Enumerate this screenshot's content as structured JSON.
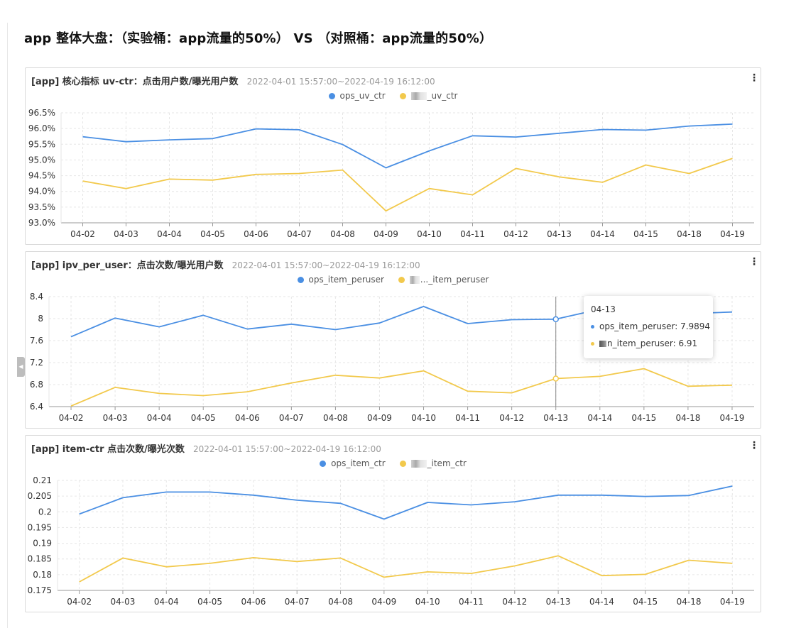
{
  "page": {
    "title": "app 整体大盘：（实验桶：app流量的50%） VS （对照桶：app流量的50%）"
  },
  "colors": {
    "blue": "#4a8fe3",
    "yellow": "#f2c94c",
    "grid": "#e6e6e6",
    "axis": "#999999"
  },
  "panels": [
    {
      "title": "[app] 核心指标 uv-ctr：点击用户数/曝光用户数",
      "range": "2022-04-01 15:57:00~2022-04-19 16:12:00",
      "legend": [
        {
          "label": "ops_uv_ctr",
          "color": "#4a8fe3",
          "masked": false
        },
        {
          "label": "_uv_ctr",
          "color": "#f2c94c",
          "masked": true
        }
      ]
    },
    {
      "title": "[app] ipv_per_user：点击次数/曝光用户数",
      "range": "2022-04-01 15:57:00~2022-04-19 16:12:00",
      "legend": [
        {
          "label": "ops_item_peruser",
          "color": "#4a8fe3",
          "masked": false
        },
        {
          "label": "..._item_peruser",
          "color": "#f2c94c",
          "masked": true
        }
      ]
    },
    {
      "title": "[app] item-ctr 点击次数/曝光次数",
      "range": "2022-04-01 15:57:00~2022-04-19 16:12:00",
      "legend": [
        {
          "label": "ops_item_ctr",
          "color": "#4a8fe3",
          "masked": false
        },
        {
          "label": "_item_ctr",
          "color": "#f2c94c",
          "masked": true
        }
      ]
    }
  ],
  "tooltip": {
    "date": "04-13",
    "rows": [
      {
        "label": "ops_item_peruser: 7.9894",
        "color": "#4a8fe3",
        "masked": false
      },
      {
        "label": "n_item_peruser: 6.91",
        "color": "#f2c94c",
        "masked": true
      }
    ]
  },
  "chart_data": [
    {
      "type": "line",
      "title": "[app] 核心指标 uv-ctr：点击用户数/曝光用户数",
      "categories": [
        "04-02",
        "04-03",
        "04-04",
        "04-05",
        "04-06",
        "04-07",
        "04-08",
        "04-09",
        "04-10",
        "04-11",
        "04-12",
        "04-13",
        "04-14",
        "04-15",
        "04-18",
        "04-19"
      ],
      "yticks": [
        "93.0%",
        "93.5%",
        "94.0%",
        "94.5%",
        "95.0%",
        "95.5%",
        "96.0%",
        "96.5%"
      ],
      "ylim": [
        93.0,
        96.5
      ],
      "series": [
        {
          "name": "ops_uv_ctr",
          "color": "#4a8fe3",
          "values": [
            95.74,
            95.58,
            95.64,
            95.68,
            95.99,
            95.96,
            95.49,
            94.75,
            95.29,
            95.77,
            95.73,
            95.85,
            95.97,
            95.95,
            96.08,
            96.14
          ]
        },
        {
          "name": "_uv_ctr",
          "color": "#f2c94c",
          "values": [
            94.33,
            94.09,
            94.39,
            94.36,
            94.54,
            94.57,
            94.68,
            93.38,
            94.09,
            93.89,
            94.73,
            94.46,
            94.29,
            94.84,
            94.57,
            95.05
          ]
        }
      ],
      "grid": true,
      "legend_position": "top-center"
    },
    {
      "type": "line",
      "title": "[app] ipv_per_user：点击次数/曝光用户数",
      "categories": [
        "04-02",
        "04-03",
        "04-04",
        "04-05",
        "04-06",
        "04-07",
        "04-08",
        "04-09",
        "04-10",
        "04-11",
        "04-12",
        "04-13",
        "04-14",
        "04-15",
        "04-18",
        "04-19"
      ],
      "yticks": [
        "6.4",
        "6.8",
        "7.2",
        "7.6",
        "8",
        "8.4"
      ],
      "ylim": [
        6.4,
        8.4
      ],
      "series": [
        {
          "name": "ops_item_peruser",
          "color": "#4a8fe3",
          "values": [
            7.67,
            8.01,
            7.85,
            8.06,
            7.81,
            7.9,
            7.8,
            7.92,
            8.22,
            7.91,
            7.98,
            7.9894,
            8.17,
            8.14,
            8.09,
            8.12
          ]
        },
        {
          "name": "..._item_peruser",
          "color": "#f2c94c",
          "values": [
            6.41,
            6.75,
            6.64,
            6.6,
            6.67,
            6.83,
            6.97,
            6.92,
            7.05,
            6.68,
            6.65,
            6.91,
            6.95,
            7.09,
            6.77,
            6.79
          ]
        }
      ],
      "highlight_category": "04-13",
      "grid": true,
      "legend_position": "top-center"
    },
    {
      "type": "line",
      "title": "[app] item-ctr 点击次数/曝光次数",
      "categories": [
        "04-02",
        "04-03",
        "04-04",
        "04-05",
        "04-06",
        "04-07",
        "04-08",
        "04-09",
        "04-10",
        "04-11",
        "04-12",
        "04-13",
        "04-14",
        "04-15",
        "04-18",
        "04-19"
      ],
      "yticks": [
        "0.175",
        "0.18",
        "0.185",
        "0.19",
        "0.195",
        "0.2",
        "0.205",
        "0.21"
      ],
      "ylim": [
        0.175,
        0.21
      ],
      "series": [
        {
          "name": "ops_item_ctr",
          "color": "#4a8fe3",
          "values": [
            0.1993,
            0.2045,
            0.2063,
            0.2063,
            0.2053,
            0.2037,
            0.2027,
            0.1977,
            0.203,
            0.2022,
            0.2032,
            0.2053,
            0.2053,
            0.2049,
            0.2052,
            0.2082
          ]
        },
        {
          "name": "_item_ctr",
          "color": "#f2c94c",
          "values": [
            0.1777,
            0.1853,
            0.1825,
            0.1836,
            0.1854,
            0.1842,
            0.1853,
            0.1792,
            0.1809,
            0.1804,
            0.1828,
            0.186,
            0.1797,
            0.1801,
            0.1846,
            0.1836
          ]
        }
      ],
      "grid": true,
      "legend_position": "top-center"
    }
  ]
}
